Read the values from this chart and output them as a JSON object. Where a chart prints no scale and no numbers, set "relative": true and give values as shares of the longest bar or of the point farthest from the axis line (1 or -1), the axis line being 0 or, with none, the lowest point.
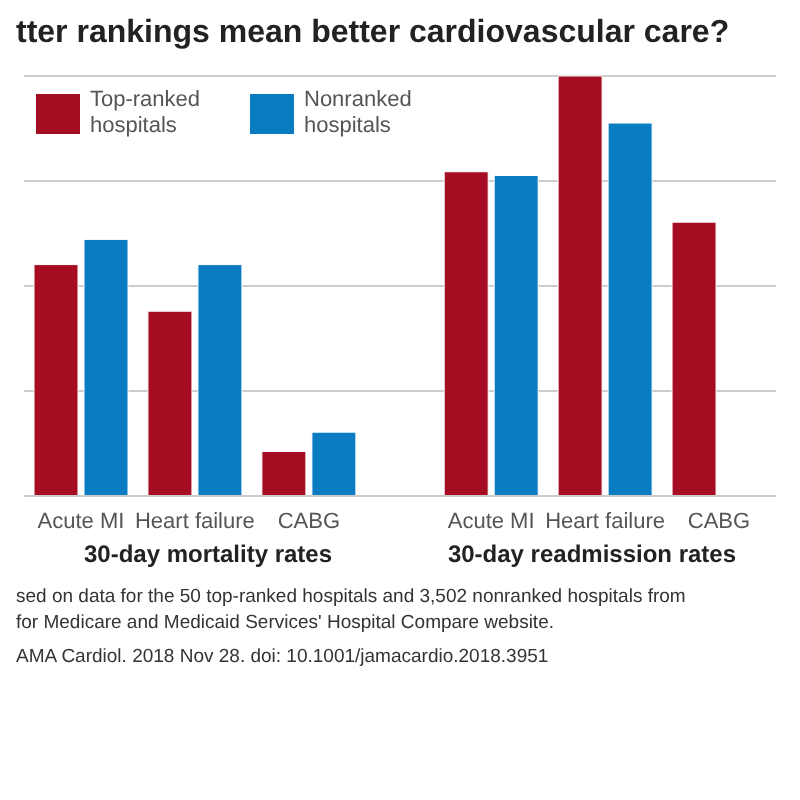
{
  "chart_data": {
    "type": "bar",
    "subtitle": "tter rankings mean better cardiovascular care?",
    "categories": [
      "Acute MI",
      "Heart failure",
      "CABG",
      "Acute MI",
      "Heart failure",
      "CABG"
    ],
    "series": [
      {
        "name": "Top-ranked hospitals",
        "color": "#a50d22",
        "values": [
          0.551,
          0.44,
          0.106,
          0.772,
          1.0,
          0.652
        ]
      },
      {
        "name": "Nonranked hospitals",
        "color": "#0a7cc2",
        "values": [
          0.611,
          0.551,
          0.152,
          0.763,
          0.888,
          null
        ]
      }
    ],
    "relative": true,
    "grid": "y",
    "legend": "top left",
    "annotations": [
      "30-day mortality rates",
      "30-day readmission rates",
      "sed on data for the 50 top-ranked hospitals and 3,502 nonranked hospitals from",
      "for Medicare and Medicaid Services' Hospital Compare website.",
      "AMA Cardiol. 2018 Nov 28. doi: 10.1001/jamacardio.2018.3951"
    ]
  }
}
